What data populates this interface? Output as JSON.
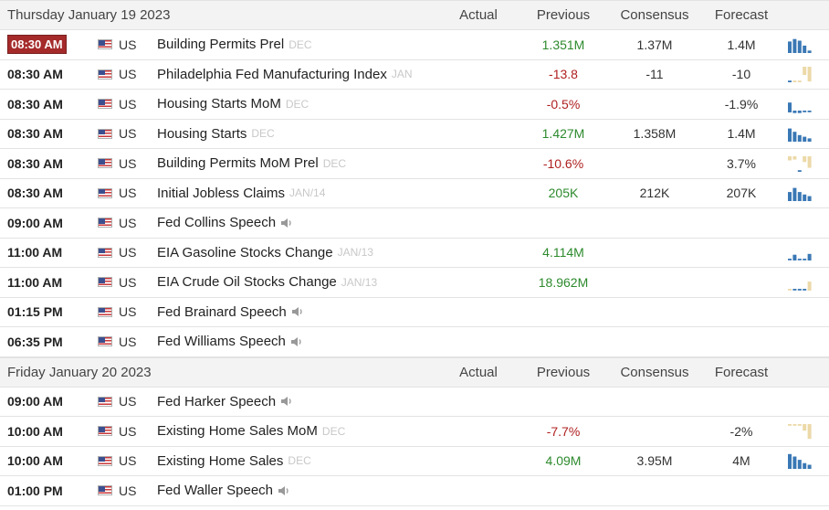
{
  "columns": {
    "actual": "Actual",
    "previous": "Previous",
    "consensus": "Consensus",
    "forecast": "Forecast"
  },
  "colors": {
    "positive": "#2d8a2d",
    "negative": "#b02020",
    "active_time_badge": "#a52a2a",
    "spark_blue": "#3a78b5",
    "spark_tan": "#ecd9a8"
  },
  "days": [
    {
      "title": "Thursday January 19 2023",
      "events": [
        {
          "time": "08:30 AM",
          "active": true,
          "country": "US",
          "name": "Building Permits Prel",
          "period": "DEC",
          "actual": "",
          "previous": "1.351M",
          "previous_tone": "pos",
          "consensus": "1.37M",
          "forecast": "1.4M",
          "spark": "blue-bars",
          "icon": "bar-chart-icon"
        },
        {
          "time": "08:30 AM",
          "country": "US",
          "name": "Philadelphia Fed Manufacturing Index",
          "period": "JAN",
          "actual": "",
          "previous": "-13.8",
          "previous_tone": "neg",
          "consensus": "-11",
          "forecast": "-10",
          "spark": "tan-neg",
          "icon": "bar-chart-icon"
        },
        {
          "time": "08:30 AM",
          "country": "US",
          "name": "Housing Starts MoM",
          "period": "DEC",
          "actual": "",
          "previous": "-0.5%",
          "previous_tone": "neg",
          "consensus": "",
          "forecast": "-1.9%",
          "spark": "blue-low",
          "icon": "bar-chart-icon"
        },
        {
          "time": "08:30 AM",
          "country": "US",
          "name": "Housing Starts",
          "period": "DEC",
          "actual": "",
          "previous": "1.427M",
          "previous_tone": "pos",
          "consensus": "1.358M",
          "forecast": "1.4M",
          "spark": "blue-bars2",
          "icon": "bar-chart-icon"
        },
        {
          "time": "08:30 AM",
          "country": "US",
          "name": "Building Permits MoM Prel",
          "period": "DEC",
          "actual": "",
          "previous": "-10.6%",
          "previous_tone": "neg",
          "consensus": "",
          "forecast": "3.7%",
          "spark": "tan-mix",
          "icon": "bar-chart-icon"
        },
        {
          "time": "08:30 AM",
          "country": "US",
          "name": "Initial Jobless Claims",
          "period": "JAN/14",
          "actual": "",
          "previous": "205K",
          "previous_tone": "pos",
          "consensus": "212K",
          "forecast": "207K",
          "spark": "blue-bars3",
          "icon": "bar-chart-icon"
        },
        {
          "time": "09:00 AM",
          "country": "US",
          "name": "Fed Collins Speech",
          "period": "",
          "speech": true,
          "actual": "",
          "previous": "",
          "consensus": "",
          "forecast": "",
          "spark": ""
        },
        {
          "time": "11:00 AM",
          "country": "US",
          "name": "EIA Gasoline Stocks Change",
          "period": "JAN/13",
          "actual": "",
          "previous": "4.114M",
          "previous_tone": "pos",
          "consensus": "",
          "forecast": "",
          "spark": "blue-mid",
          "icon": "bar-chart-icon"
        },
        {
          "time": "11:00 AM",
          "country": "US",
          "name": "EIA Crude Oil Stocks Change",
          "period": "JAN/13",
          "actual": "",
          "previous": "18.962M",
          "previous_tone": "pos",
          "consensus": "",
          "forecast": "",
          "spark": "blue-mid2",
          "icon": "bar-chart-icon"
        },
        {
          "time": "01:15 PM",
          "country": "US",
          "name": "Fed Brainard Speech",
          "period": "",
          "speech": true,
          "actual": "",
          "previous": "",
          "consensus": "",
          "forecast": "",
          "spark": ""
        },
        {
          "time": "06:35 PM",
          "country": "US",
          "name": "Fed Williams Speech",
          "period": "",
          "speech": true,
          "actual": "",
          "previous": "",
          "consensus": "",
          "forecast": "",
          "spark": ""
        }
      ]
    },
    {
      "title": "Friday January 20 2023",
      "events": [
        {
          "time": "09:00 AM",
          "country": "US",
          "name": "Fed Harker Speech",
          "period": "",
          "speech": true,
          "actual": "",
          "previous": "",
          "consensus": "",
          "forecast": "",
          "spark": ""
        },
        {
          "time": "10:00 AM",
          "country": "US",
          "name": "Existing Home Sales MoM",
          "period": "DEC",
          "actual": "",
          "previous": "-7.7%",
          "previous_tone": "neg",
          "consensus": "",
          "forecast": "-2%",
          "spark": "tan-neg2",
          "icon": "bar-chart-icon"
        },
        {
          "time": "10:00 AM",
          "country": "US",
          "name": "Existing Home Sales",
          "period": "DEC",
          "actual": "",
          "previous": "4.09M",
          "previous_tone": "pos",
          "consensus": "3.95M",
          "forecast": "4M",
          "spark": "blue-bars4",
          "icon": "bar-chart-icon"
        },
        {
          "time": "01:00 PM",
          "country": "US",
          "name": "Fed Waller Speech",
          "period": "",
          "speech": true,
          "actual": "",
          "previous": "",
          "consensus": "",
          "forecast": "",
          "spark": ""
        }
      ]
    }
  ]
}
